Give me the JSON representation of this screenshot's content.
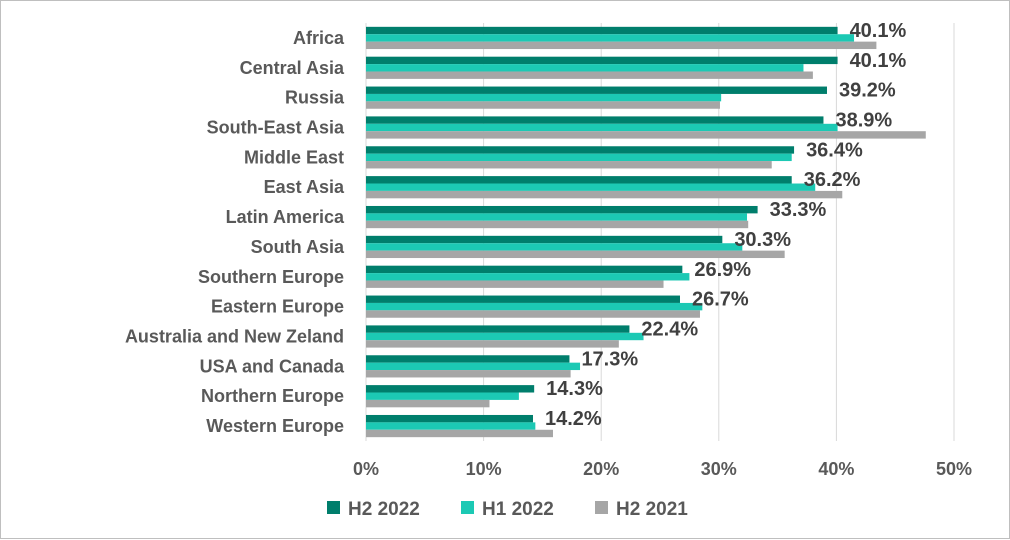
{
  "chart_data": {
    "type": "bar",
    "orientation": "horizontal",
    "categories": [
      "Africa",
      "Central Asia",
      "Russia",
      "South-East Asia",
      "Middle East",
      "East Asia",
      "Latin America",
      "South Asia",
      "Southern Europe",
      "Eastern Europe",
      "Australia and New Zeland",
      "USA and Canada",
      "Northern Europe",
      "Western Europe"
    ],
    "series": [
      {
        "name": "H2 2022",
        "color": "#007E6C",
        "values": [
          40.1,
          40.1,
          39.2,
          38.9,
          36.4,
          36.2,
          33.3,
          30.3,
          26.9,
          26.7,
          22.4,
          17.3,
          14.3,
          14.2
        ]
      },
      {
        "name": "H1 2022",
        "color": "#1CC9B4",
        "values": [
          41.5,
          37.2,
          30.2,
          40.1,
          36.2,
          38.2,
          32.4,
          32.0,
          27.5,
          28.6,
          23.6,
          18.2,
          13.0,
          14.4
        ]
      },
      {
        "name": "H2 2021",
        "color": "#A6A6A6",
        "values": [
          43.4,
          38.0,
          30.1,
          47.6,
          34.5,
          40.5,
          32.5,
          35.6,
          25.3,
          28.4,
          21.5,
          17.4,
          10.5,
          15.9
        ]
      }
    ],
    "data_labels": [
      "40.1%",
      "40.1%",
      "39.2%",
      "38.9%",
      "36.4%",
      "36.2%",
      "33.3%",
      "30.3%",
      "26.9%",
      "26.7%",
      "22.4%",
      "17.3%",
      "14.3%",
      "14.2%"
    ],
    "xaxis": {
      "min": 0,
      "max": 50,
      "ticks": [
        "0%",
        "10%",
        "20%",
        "30%",
        "40%",
        "50%"
      ]
    },
    "grid": "vertical",
    "legend": "bottom"
  }
}
